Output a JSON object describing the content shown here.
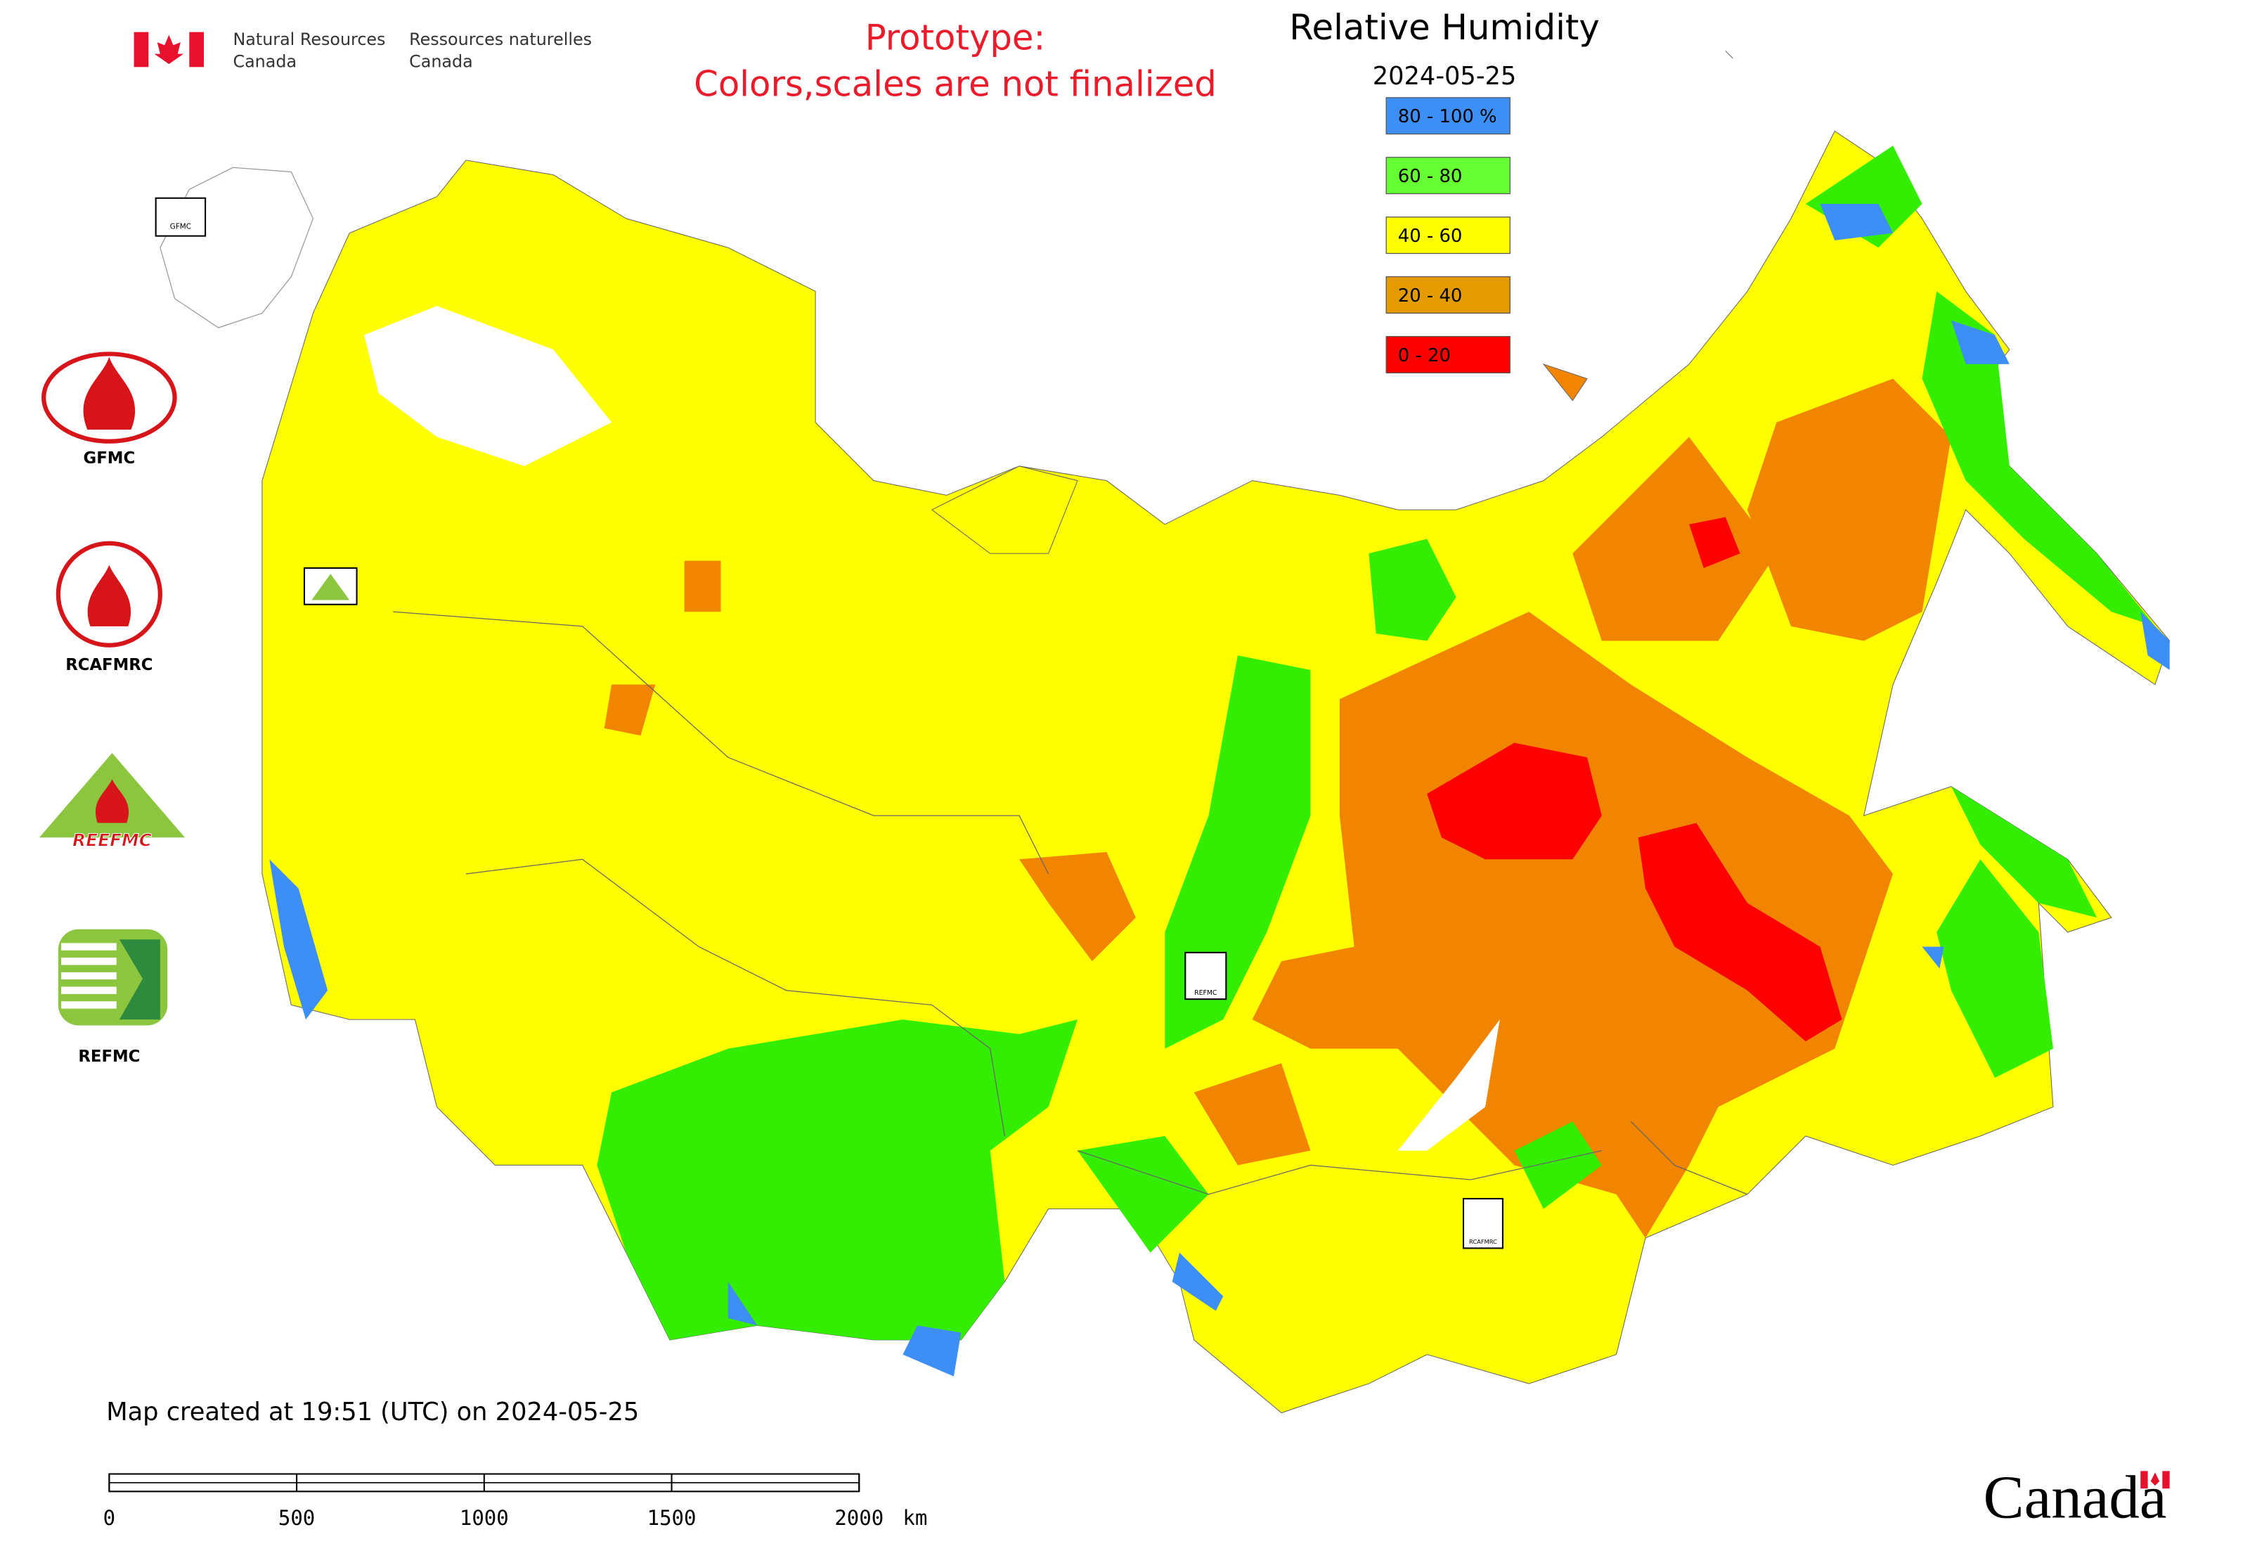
{
  "header": {
    "department_en": [
      "Natural Resources",
      "Canada"
    ],
    "department_fr": [
      "Ressources naturelles",
      "Canada"
    ]
  },
  "notice": [
    "Prototype:",
    "Colors,scales are not finalized"
  ],
  "map": {
    "title": "Relative Humidity",
    "date": "2024-05-25"
  },
  "legend": {
    "items": [
      {
        "label": "80 - 100 %",
        "color": "#3d8ff5"
      },
      {
        "label": "60 - 80",
        "color": "#66ff33"
      },
      {
        "label": "40 - 60",
        "color": "#ffff00"
      },
      {
        "label": "20 - 40",
        "color": "#e39b00"
      },
      {
        "label": "0 - 20",
        "color": "#ff0000"
      }
    ]
  },
  "logos": [
    {
      "label": "GFMC"
    },
    {
      "label": "RCAFMRC"
    },
    {
      "label": "REEFMC"
    },
    {
      "label": "REFMC"
    }
  ],
  "footer": {
    "created": "Map created at 19:51 (UTC) on 2024-05-25",
    "wordmark": "Canada"
  },
  "scale_bar": {
    "ticks": [
      0,
      500,
      1000,
      1500,
      2000
    ],
    "unit": "km"
  }
}
